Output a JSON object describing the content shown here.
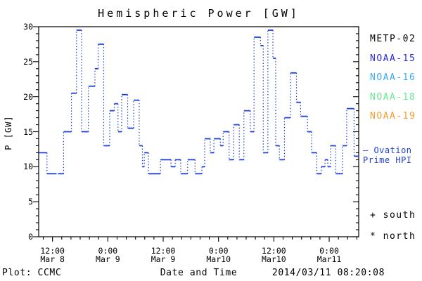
{
  "title": "Hemispheric Power [GW]",
  "legend": {
    "satellites": [
      {
        "label": "METP-02",
        "color": "#000000"
      },
      {
        "label": "NOAA-15",
        "color": "#2a2ae0"
      },
      {
        "label": "NOAA-16",
        "color": "#3aabf2"
      },
      {
        "label": "NOAA-18",
        "color": "#68e895"
      },
      {
        "label": "NOAA-19",
        "color": "#f59b2e"
      }
    ],
    "series_note": {
      "line1": "— Ovation",
      "line2": "Prime HPI",
      "color": "#1d3fd6"
    },
    "markers": [
      {
        "symbol": "+",
        "label": "south"
      },
      {
        "symbol": "*",
        "label": "north"
      }
    ]
  },
  "footer": {
    "left": "Plot: CCMC",
    "center": "Date and Time",
    "right": "2014/03/11 08:20:08"
  },
  "chart_data": {
    "type": "line",
    "style": "steps-with-dotted-connectors",
    "title": "Hemispheric Power [GW]",
    "xlabel": "Date and Time",
    "ylabel": "P [GW]",
    "ylim": [
      0,
      30
    ],
    "y_major_tick_step": 5,
    "y_minor_tick_step": 1,
    "grid": false,
    "legend_position": "right",
    "series_name": "Ovation Prime HPI",
    "color": "#1d3fd6",
    "x_unit": "hours since 2014-03-08 00:00",
    "x_start_hours": 9.0,
    "x_end_hours": 78.4,
    "x_minor_tick_step_hours": 2,
    "x_major_ticks": [
      {
        "t": 12,
        "time": "12:00",
        "date": "Mar 8"
      },
      {
        "t": 24,
        "time": "0:00",
        "date": "Mar 9"
      },
      {
        "t": 36,
        "time": "12:00",
        "date": "Mar 9"
      },
      {
        "t": 48,
        "time": "0:00",
        "date": "Mar10"
      },
      {
        "t": 60,
        "time": "12:00",
        "date": "Mar10"
      },
      {
        "t": 72,
        "time": "0:00",
        "date": "Mar11"
      }
    ],
    "segments_format": [
      "t_start_hours",
      "t_end_hours",
      "power_gw"
    ],
    "segments": [
      [
        9.1,
        10.8,
        12
      ],
      [
        10.8,
        12.9,
        9
      ],
      [
        13.2,
        14.4,
        9
      ],
      [
        14.4,
        16.1,
        15
      ],
      [
        16.1,
        17.2,
        20.5
      ],
      [
        17.2,
        18.3,
        29.5
      ],
      [
        18.3,
        19.8,
        15
      ],
      [
        19.8,
        21.2,
        21.5
      ],
      [
        21.2,
        21.9,
        24
      ],
      [
        21.9,
        23.1,
        27.5
      ],
      [
        23.1,
        24.4,
        13
      ],
      [
        24.4,
        25.4,
        18
      ],
      [
        25.4,
        26.2,
        19
      ],
      [
        26.2,
        27.0,
        15
      ],
      [
        27.0,
        28.3,
        20.3
      ],
      [
        28.3,
        29.6,
        15.5
      ],
      [
        29.6,
        30.8,
        19.5
      ],
      [
        30.8,
        31.5,
        13
      ],
      [
        31.5,
        31.9,
        10
      ],
      [
        31.9,
        32.8,
        12
      ],
      [
        32.8,
        35.4,
        9
      ],
      [
        35.4,
        37.7,
        11
      ],
      [
        37.7,
        38.6,
        10
      ],
      [
        38.6,
        39.8,
        11
      ],
      [
        39.8,
        41.3,
        9
      ],
      [
        41.3,
        42.9,
        11
      ],
      [
        42.9,
        44.4,
        9
      ],
      [
        44.4,
        45.0,
        10
      ],
      [
        45.0,
        46.2,
        14
      ],
      [
        46.2,
        47.0,
        12
      ],
      [
        47.0,
        48.4,
        14
      ],
      [
        48.4,
        49.0,
        13
      ],
      [
        49.0,
        50.3,
        15
      ],
      [
        50.3,
        51.3,
        11
      ],
      [
        51.3,
        52.5,
        16
      ],
      [
        52.5,
        53.5,
        11
      ],
      [
        53.5,
        54.9,
        18
      ],
      [
        54.9,
        55.7,
        15
      ],
      [
        55.7,
        57.1,
        28.5
      ],
      [
        57.1,
        57.7,
        27.3
      ],
      [
        57.7,
        58.7,
        12
      ],
      [
        58.7,
        59.8,
        29.5
      ],
      [
        59.8,
        60.4,
        25.5
      ],
      [
        60.4,
        61.2,
        13
      ],
      [
        61.2,
        62.3,
        11
      ],
      [
        62.3,
        63.6,
        17
      ],
      [
        63.6,
        64.9,
        23.4
      ],
      [
        64.9,
        65.8,
        19.2
      ],
      [
        65.8,
        67.3,
        17.2
      ],
      [
        67.3,
        68.2,
        15
      ],
      [
        68.2,
        69.3,
        12
      ],
      [
        69.3,
        70.3,
        9
      ],
      [
        70.3,
        71.1,
        10
      ],
      [
        71.1,
        71.7,
        11
      ],
      [
        71.7,
        72.3,
        10
      ],
      [
        72.3,
        73.4,
        13
      ],
      [
        73.4,
        74.9,
        9
      ],
      [
        74.9,
        75.8,
        13
      ],
      [
        75.8,
        77.4,
        18.3
      ],
      [
        77.4,
        78.4,
        11.5
      ]
    ]
  }
}
